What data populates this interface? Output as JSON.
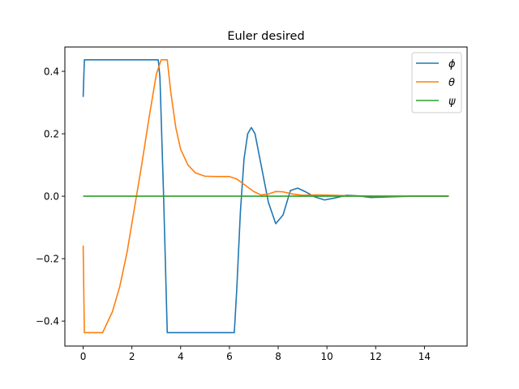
{
  "chart_data": {
    "type": "line",
    "title": "Euler desired",
    "xlabel": "",
    "ylabel": "",
    "xlim": [
      -0.75,
      15.75
    ],
    "ylim": [
      -0.48,
      0.478
    ],
    "xticks": [
      0,
      2,
      4,
      6,
      8,
      10,
      12,
      14
    ],
    "xtick_labels": [
      "0",
      "2",
      "4",
      "6",
      "8",
      "10",
      "12",
      "14"
    ],
    "yticks": [
      -0.4,
      -0.2,
      0.0,
      0.2,
      0.4
    ],
    "ytick_labels": [
      "−0.4",
      "−0.2",
      "0.0",
      "0.2",
      "0.4"
    ],
    "grid": false,
    "legend_position": "top-right",
    "series": [
      {
        "name": "ϕ",
        "color": "#1f77b4",
        "x": [
          0,
          0.05,
          0.5,
          1,
          2,
          3,
          3.08,
          3.15,
          3.3,
          3.45,
          4,
          5,
          6,
          6.2,
          6.3,
          6.45,
          6.6,
          6.75,
          6.9,
          7.05,
          7.3,
          7.6,
          7.9,
          8.2,
          8.5,
          8.8,
          9.1,
          9.5,
          9.9,
          10.3,
          10.8,
          11.3,
          11.8,
          12.5,
          13.5,
          15
        ],
        "y": [
          0.318,
          0.437,
          0.437,
          0.437,
          0.437,
          0.437,
          0.437,
          0.38,
          0.0,
          -0.437,
          -0.437,
          -0.437,
          -0.437,
          -0.437,
          -0.3,
          -0.05,
          0.12,
          0.2,
          0.22,
          0.2,
          0.1,
          -0.02,
          -0.088,
          -0.06,
          0.018,
          0.026,
          0.015,
          -0.002,
          -0.012,
          -0.006,
          0.003,
          0.001,
          -0.004,
          -0.002,
          0.0,
          0.0
        ]
      },
      {
        "name": "θ",
        "color": "#ff7f0e",
        "x": [
          0,
          0.05,
          0.3,
          0.8,
          1.2,
          1.5,
          1.8,
          2.1,
          2.4,
          2.7,
          3.0,
          3.2,
          3.45,
          3.6,
          3.8,
          4.0,
          4.3,
          4.6,
          5.0,
          5.5,
          6.0,
          6.3,
          6.6,
          7.0,
          7.3,
          7.6,
          7.9,
          8.2,
          8.6,
          9.0,
          9.6,
          10.2,
          11,
          12,
          13,
          15
        ],
        "y": [
          -0.158,
          -0.437,
          -0.437,
          -0.437,
          -0.37,
          -0.29,
          -0.18,
          -0.04,
          0.1,
          0.25,
          0.39,
          0.437,
          0.437,
          0.33,
          0.22,
          0.15,
          0.1,
          0.075,
          0.064,
          0.063,
          0.063,
          0.055,
          0.038,
          0.015,
          0.004,
          0.007,
          0.015,
          0.014,
          0.007,
          0.003,
          0.004,
          0.003,
          0.001,
          0.0,
          0.0,
          0.0
        ]
      },
      {
        "name": "ψ",
        "color": "#2ca02c",
        "x": [
          0,
          15
        ],
        "y": [
          0.0,
          0.0
        ]
      }
    ]
  }
}
